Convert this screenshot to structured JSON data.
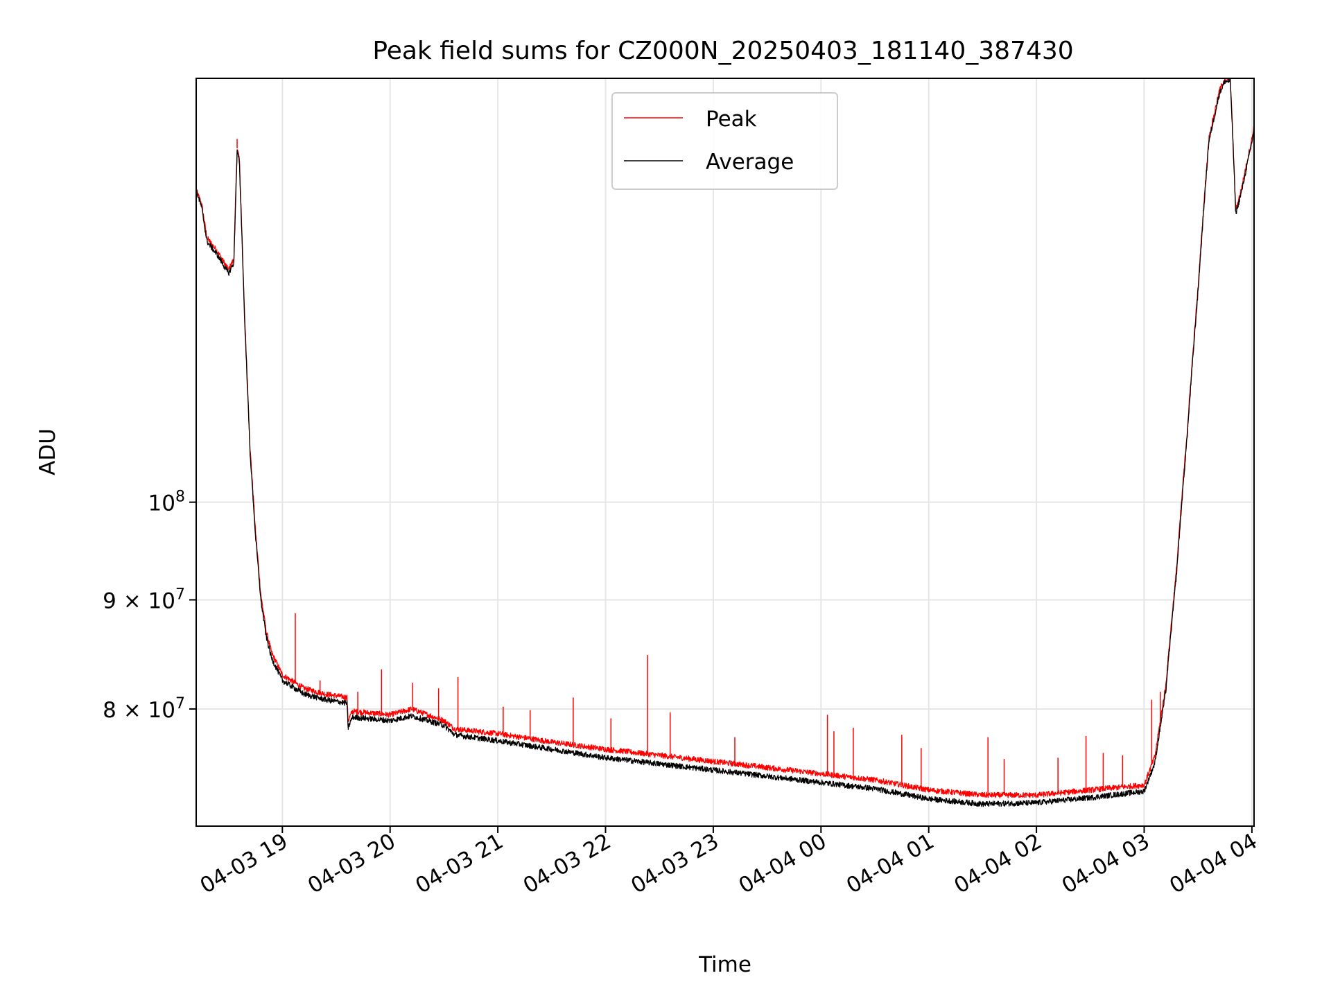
{
  "chart_data": {
    "type": "line",
    "title": "Peak field sums for CZ000N_20250403_181140_387430",
    "xlabel": "Time",
    "ylabel": "ADU",
    "yscale": "log",
    "x_unit": "hours since 2025-04-03 00:00",
    "xlim": [
      18.2,
      28.02
    ],
    "ylim": [
      70500000,
      158000000
    ],
    "x_ticks": [
      {
        "value": 19,
        "label": "04-03 19"
      },
      {
        "value": 20,
        "label": "04-03 20"
      },
      {
        "value": 21,
        "label": "04-03 21"
      },
      {
        "value": 22,
        "label": "04-03 22"
      },
      {
        "value": 23,
        "label": "04-03 23"
      },
      {
        "value": 24,
        "label": "04-04 00"
      },
      {
        "value": 25,
        "label": "04-04 01"
      },
      {
        "value": 26,
        "label": "04-04 02"
      },
      {
        "value": 27,
        "label": "04-04 03"
      },
      {
        "value": 28,
        "label": "04-04 04"
      }
    ],
    "y_ticks": [
      {
        "value": 80000000,
        "label": "8 × 10",
        "exp": "7"
      },
      {
        "value": 90000000,
        "label": "9 × 10",
        "exp": "7"
      },
      {
        "value": 100000000,
        "label": "10",
        "exp": "8"
      }
    ],
    "grid": true,
    "legend_position": "top-center",
    "series": [
      {
        "name": "Peak",
        "color": "#ff0000",
        "x": [
          18.2,
          18.25,
          18.3,
          18.4,
          18.5,
          18.55,
          18.58,
          18.6,
          18.65,
          18.7,
          18.75,
          18.8,
          18.85,
          18.9,
          19.0,
          19.2,
          19.4,
          19.6,
          19.61,
          19.65,
          20.0,
          20.2,
          20.5,
          20.6,
          21.0,
          21.5,
          22.0,
          22.5,
          23.0,
          23.5,
          24.0,
          24.5,
          25.0,
          25.5,
          26.0,
          26.5,
          27.0,
          27.1,
          27.2,
          27.3,
          27.4,
          27.5,
          27.6,
          27.7,
          27.75,
          27.8,
          27.85,
          27.9,
          28.0,
          28.02
        ],
        "y": [
          140000000,
          138000000,
          133000000,
          131000000,
          128500000,
          130000000,
          146500000,
          145000000,
          122000000,
          106000000,
          97000000,
          90500000,
          87000000,
          85000000,
          83000000,
          81800000,
          81300000,
          81000000,
          79000000,
          79800000,
          79500000,
          80000000,
          79000000,
          78300000,
          77900000,
          77200000,
          76600000,
          76100000,
          75600000,
          75100000,
          74600000,
          74100000,
          73300000,
          72900000,
          72900000,
          73300000,
          73700000,
          76000000,
          82000000,
          93000000,
          108000000,
          126000000,
          148000000,
          156000000,
          158000000,
          158000000,
          137000000,
          140000000,
          148000000,
          150000000
        ]
      },
      {
        "name": "Average",
        "color": "#000000",
        "x": [
          18.2,
          18.25,
          18.3,
          18.4,
          18.5,
          18.55,
          18.58,
          18.6,
          18.65,
          18.7,
          18.75,
          18.8,
          18.85,
          18.9,
          19.0,
          19.2,
          19.4,
          19.6,
          19.61,
          19.65,
          20.0,
          20.2,
          20.5,
          20.6,
          21.0,
          21.5,
          22.0,
          22.5,
          23.0,
          23.5,
          24.0,
          24.5,
          25.0,
          25.5,
          26.0,
          26.5,
          27.0,
          27.1,
          27.2,
          27.3,
          27.4,
          27.5,
          27.6,
          27.7,
          27.75,
          27.8,
          27.85,
          27.9,
          28.0,
          28.02
        ],
        "y": [
          140000000,
          137500000,
          132500000,
          130500000,
          128000000,
          129500000,
          146000000,
          144500000,
          121500000,
          105500000,
          96500000,
          90000000,
          86500000,
          84500000,
          82500000,
          81300000,
          80800000,
          80500000,
          78400000,
          79300000,
          79000000,
          79400000,
          78600000,
          77800000,
          77300000,
          76600000,
          75900000,
          75400000,
          74900000,
          74400000,
          73900000,
          73400000,
          72600000,
          72200000,
          72300000,
          72700000,
          73200000,
          75500000,
          81500000,
          92500000,
          107500000,
          125500000,
          147500000,
          155500000,
          157500000,
          157500000,
          136500000,
          139500000,
          147500000,
          149500000
        ]
      }
    ],
    "spikes": [
      {
        "x": 18.58,
        "y": 148000000
      },
      {
        "x": 19.12,
        "y": 88700000
      },
      {
        "x": 19.35,
        "y": 82500000
      },
      {
        "x": 19.7,
        "y": 81500000
      },
      {
        "x": 19.92,
        "y": 83500000
      },
      {
        "x": 20.21,
        "y": 82300000
      },
      {
        "x": 20.45,
        "y": 81800000
      },
      {
        "x": 20.63,
        "y": 82800000
      },
      {
        "x": 21.05,
        "y": 80200000
      },
      {
        "x": 21.3,
        "y": 79900000
      },
      {
        "x": 21.7,
        "y": 81000000
      },
      {
        "x": 22.05,
        "y": 79200000
      },
      {
        "x": 22.39,
        "y": 84800000
      },
      {
        "x": 22.6,
        "y": 79700000
      },
      {
        "x": 23.2,
        "y": 77600000
      },
      {
        "x": 24.06,
        "y": 79500000
      },
      {
        "x": 24.12,
        "y": 78100000
      },
      {
        "x": 24.3,
        "y": 78400000
      },
      {
        "x": 24.75,
        "y": 77800000
      },
      {
        "x": 24.93,
        "y": 76700000
      },
      {
        "x": 25.55,
        "y": 77600000
      },
      {
        "x": 25.7,
        "y": 75800000
      },
      {
        "x": 26.2,
        "y": 75900000
      },
      {
        "x": 26.46,
        "y": 77700000
      },
      {
        "x": 26.62,
        "y": 76300000
      },
      {
        "x": 26.8,
        "y": 76100000
      },
      {
        "x": 27.07,
        "y": 80800000
      },
      {
        "x": 27.15,
        "y": 81500000
      }
    ]
  }
}
